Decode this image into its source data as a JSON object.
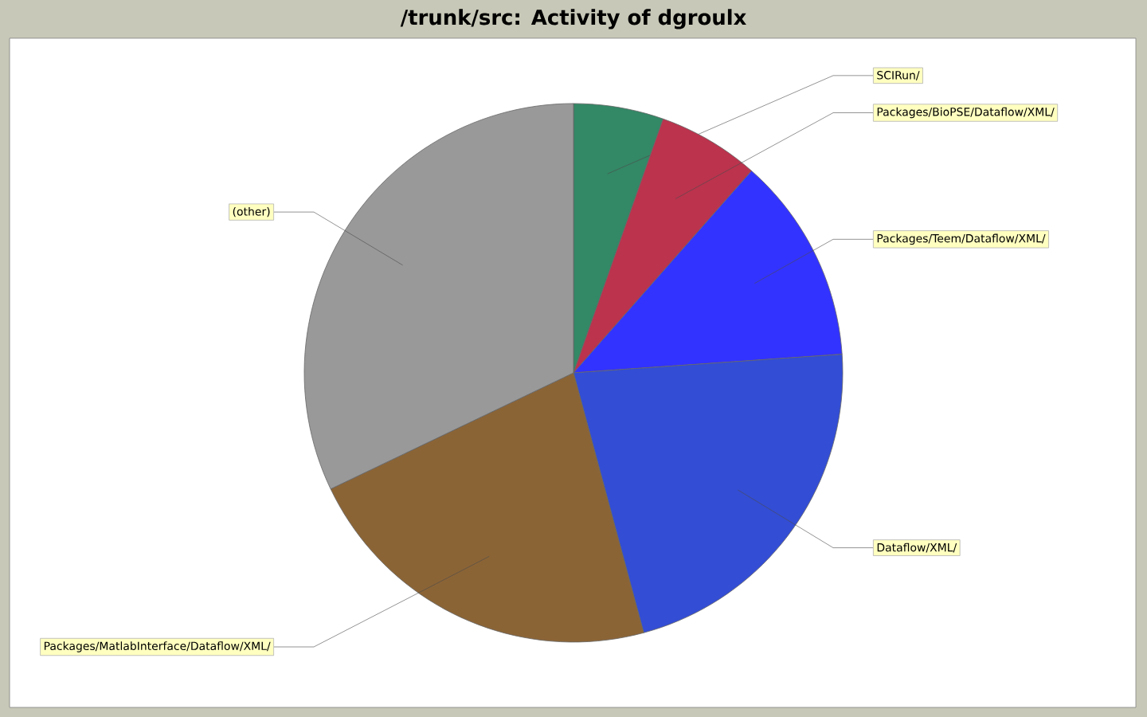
{
  "chart_data": {
    "type": "pie",
    "title": "/trunk/src: Activity of dgroulx",
    "categories": [
      "SCIRun/",
      "Packages/BioPSE/Dataflow/XML/",
      "Packages/Teem/Dataflow/XML/",
      "Dataflow/XML/",
      "Packages/MatlabInterface/Dataflow/XML/",
      "(other)"
    ],
    "values": [
      5.4,
      6.1,
      12.4,
      21.9,
      22.1,
      32.1
    ],
    "colors": [
      "#338866",
      "#bb334d",
      "#3333ff",
      "#334dd4",
      "#8b6436",
      "#999999"
    ]
  }
}
